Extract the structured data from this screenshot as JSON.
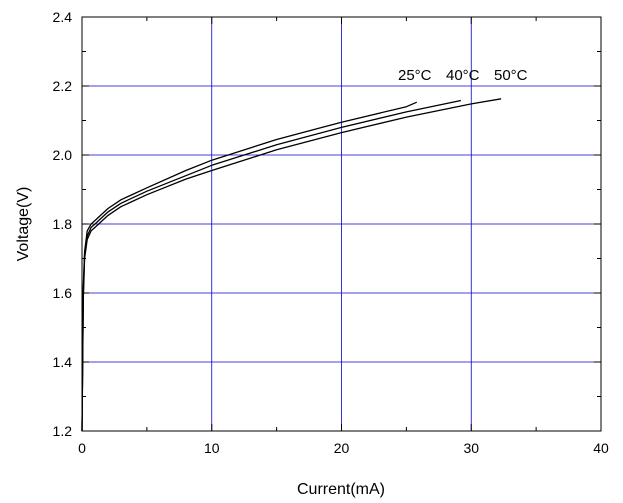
{
  "chart_data": {
    "type": "line",
    "title": "",
    "xlabel": "Current(mA)",
    "ylabel": "Voltage(V)",
    "xlim": [
      0,
      40
    ],
    "ylim": [
      1.2,
      2.4
    ],
    "x_ticks": [
      "0",
      "10",
      "20",
      "30",
      "40"
    ],
    "y_ticks": [
      "1.2",
      "1.4",
      "1.6",
      "1.8",
      "2.0",
      "2.2",
      "2.4"
    ],
    "grid": true,
    "grid_color": "#0000cc",
    "line_color": "#000000",
    "series": [
      {
        "name": "25°C",
        "x": [
          0,
          0.1,
          0.2,
          0.4,
          0.7,
          1,
          2,
          3,
          5,
          8,
          10,
          15,
          20,
          25,
          25.8
        ],
        "y": [
          1.2,
          1.62,
          1.72,
          1.78,
          1.8,
          1.81,
          1.845,
          1.87,
          1.905,
          1.955,
          1.985,
          2.045,
          2.095,
          2.14,
          2.153
        ]
      },
      {
        "name": "40°C",
        "x": [
          0,
          0.1,
          0.2,
          0.4,
          0.7,
          1,
          2,
          3,
          5,
          8,
          10,
          15,
          20,
          25,
          29.2
        ],
        "y": [
          1.2,
          1.6,
          1.71,
          1.765,
          1.79,
          1.8,
          1.835,
          1.86,
          1.895,
          1.94,
          1.97,
          2.03,
          2.08,
          2.125,
          2.158
        ]
      },
      {
        "name": "50°C",
        "x": [
          0,
          0.1,
          0.2,
          0.4,
          0.7,
          1,
          2,
          3,
          5,
          8,
          10,
          15,
          20,
          25,
          30,
          32.3
        ],
        "y": [
          1.2,
          1.58,
          1.7,
          1.755,
          1.78,
          1.79,
          1.825,
          1.85,
          1.885,
          1.93,
          1.955,
          2.015,
          2.065,
          2.11,
          2.148,
          2.163
        ]
      }
    ]
  }
}
